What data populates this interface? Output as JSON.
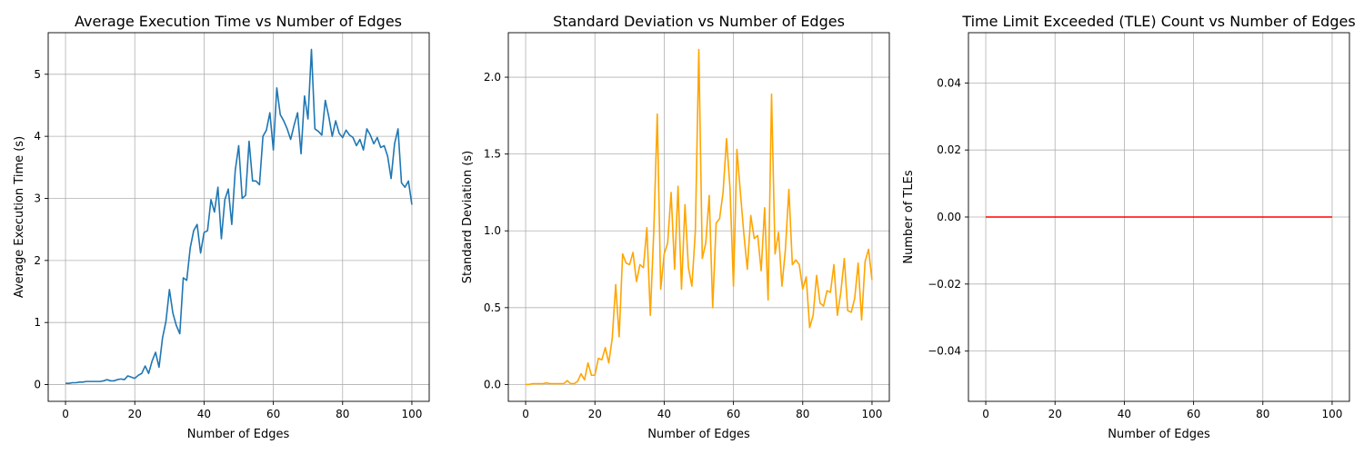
{
  "chart_data": [
    {
      "type": "line",
      "title": "Average Execution Time vs Number of Edges",
      "xlabel": "Number of Edges",
      "ylabel": "Average Execution Time (s)",
      "xlim": [
        -5,
        105
      ],
      "ylim": [
        -0.27,
        5.67
      ],
      "xticks": [
        0,
        20,
        40,
        60,
        80,
        100
      ],
      "yticks": [
        0,
        1,
        2,
        3,
        4,
        5
      ],
      "grid": true,
      "color": "#1f77b4",
      "series": [
        {
          "x": [
            0,
            1,
            2,
            3,
            4,
            5,
            6,
            7,
            8,
            9,
            10,
            11,
            12,
            13,
            14,
            15,
            16,
            17,
            18,
            19,
            20,
            21,
            22,
            23,
            24,
            25,
            26,
            27,
            28,
            29,
            30,
            31,
            32,
            33,
            34,
            35,
            36,
            37,
            38,
            39,
            40,
            41,
            42,
            43,
            44,
            45,
            46,
            47,
            48,
            49,
            50,
            51,
            52,
            53,
            54,
            55,
            56,
            57,
            58,
            59,
            60,
            61,
            62,
            63,
            64,
            65,
            66,
            67,
            68,
            69,
            70,
            71,
            72,
            73,
            74,
            75,
            76,
            77,
            78,
            79,
            80,
            81,
            82,
            83,
            84,
            85,
            86,
            87,
            88,
            89,
            90,
            91,
            92,
            93,
            94,
            95,
            96,
            97,
            98,
            99,
            100
          ],
          "values": [
            0.02,
            0.02,
            0.03,
            0.03,
            0.04,
            0.04,
            0.05,
            0.05,
            0.05,
            0.05,
            0.05,
            0.06,
            0.08,
            0.06,
            0.06,
            0.08,
            0.09,
            0.08,
            0.14,
            0.12,
            0.1,
            0.15,
            0.18,
            0.3,
            0.18,
            0.38,
            0.52,
            0.28,
            0.75,
            1.02,
            1.53,
            1.15,
            0.95,
            0.82,
            1.72,
            1.68,
            2.2,
            2.48,
            2.58,
            2.12,
            2.45,
            2.48,
            2.98,
            2.78,
            3.18,
            2.35,
            2.98,
            3.15,
            2.58,
            3.45,
            3.85,
            3.0,
            3.05,
            3.92,
            3.28,
            3.28,
            3.22,
            4.0,
            4.1,
            4.38,
            3.78,
            4.78,
            4.35,
            4.25,
            4.12,
            3.95,
            4.18,
            4.38,
            3.72,
            4.65,
            4.28,
            5.4,
            4.12,
            4.08,
            4.02,
            4.58,
            4.32,
            4.0,
            4.25,
            4.05,
            3.98,
            4.1,
            4.02,
            3.98,
            3.85,
            3.95,
            3.78,
            4.12,
            4.02,
            3.88,
            3.98,
            3.82,
            3.85,
            3.68,
            3.32,
            3.88,
            4.12,
            3.25,
            3.18,
            3.28,
            2.9
          ]
        }
      ]
    },
    {
      "type": "line",
      "title": "Standard Deviation vs Number of Edges",
      "xlabel": "Number of Edges",
      "ylabel": "Standard Deviation (s)",
      "xlim": [
        -5,
        105
      ],
      "ylim": [
        -0.11,
        2.29
      ],
      "xticks": [
        0,
        20,
        40,
        60,
        80,
        100
      ],
      "yticks": [
        0.0,
        0.5,
        1.0,
        1.5,
        2.0
      ],
      "ytick_labels": [
        "0.0",
        "0.5",
        "1.0",
        "1.5",
        "2.0"
      ],
      "grid": true,
      "color": "#ffa500",
      "series": [
        {
          "x": [
            0,
            1,
            2,
            3,
            4,
            5,
            6,
            7,
            8,
            9,
            10,
            11,
            12,
            13,
            14,
            15,
            16,
            17,
            18,
            19,
            20,
            21,
            22,
            23,
            24,
            25,
            26,
            27,
            28,
            29,
            30,
            31,
            32,
            33,
            34,
            35,
            36,
            37,
            38,
            39,
            40,
            41,
            42,
            43,
            44,
            45,
            46,
            47,
            48,
            49,
            50,
            51,
            52,
            53,
            54,
            55,
            56,
            57,
            58,
            59,
            60,
            61,
            62,
            63,
            64,
            65,
            66,
            67,
            68,
            69,
            70,
            71,
            72,
            73,
            74,
            75,
            76,
            77,
            78,
            79,
            80,
            81,
            82,
            83,
            84,
            85,
            86,
            87,
            88,
            89,
            90,
            91,
            92,
            93,
            94,
            95,
            96,
            97,
            98,
            99,
            100
          ],
          "values": [
            0.0,
            0.0,
            0.005,
            0.005,
            0.005,
            0.005,
            0.01,
            0.005,
            0.005,
            0.005,
            0.005,
            0.005,
            0.025,
            0.005,
            0.005,
            0.02,
            0.07,
            0.03,
            0.14,
            0.06,
            0.06,
            0.17,
            0.16,
            0.24,
            0.14,
            0.3,
            0.65,
            0.31,
            0.85,
            0.79,
            0.78,
            0.86,
            0.67,
            0.78,
            0.76,
            1.02,
            0.45,
            1.0,
            1.76,
            0.62,
            0.85,
            0.92,
            1.25,
            0.75,
            1.29,
            0.62,
            1.17,
            0.76,
            0.64,
            1.0,
            2.18,
            0.82,
            0.92,
            1.23,
            0.5,
            1.05,
            1.08,
            1.25,
            1.6,
            1.28,
            0.64,
            1.53,
            1.25,
            0.98,
            0.75,
            1.1,
            0.95,
            0.97,
            0.74,
            1.15,
            0.55,
            1.89,
            0.85,
            0.99,
            0.64,
            0.88,
            1.27,
            0.78,
            0.81,
            0.78,
            0.62,
            0.7,
            0.37,
            0.45,
            0.71,
            0.53,
            0.51,
            0.61,
            0.6,
            0.78,
            0.45,
            0.6,
            0.82,
            0.48,
            0.47,
            0.56,
            0.79,
            0.42,
            0.8,
            0.88,
            0.68
          ]
        }
      ]
    },
    {
      "type": "line",
      "title": "Time Limit Exceeded (TLE) Count vs Number of Edges",
      "xlabel": "Number of Edges",
      "ylabel": "Number of TLEs",
      "xlim": [
        -5,
        105
      ],
      "ylim": [
        -0.055,
        0.055
      ],
      "xticks": [
        0,
        20,
        40,
        60,
        80,
        100
      ],
      "yticks": [
        -0.04,
        -0.02,
        0.0,
        0.02,
        0.04
      ],
      "ytick_labels": [
        "−0.04",
        "−0.02",
        "0.00",
        "0.02",
        "0.04"
      ],
      "grid": true,
      "color": "#ff0000",
      "series": [
        {
          "x": [
            0,
            100
          ],
          "values": [
            0,
            0
          ]
        }
      ]
    }
  ]
}
